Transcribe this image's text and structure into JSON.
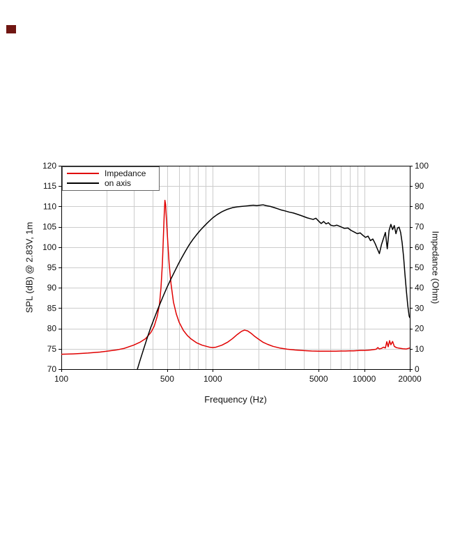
{
  "page": {
    "background": "#ffffff"
  },
  "logo": {
    "color": "#701612"
  },
  "chart_data": {
    "type": "line",
    "title": "",
    "xlabel": "Frequency (Hz)",
    "x_scale": "log",
    "x_range": [
      100,
      20000
    ],
    "x_ticks": [
      {
        "value": 100,
        "label": "100"
      },
      {
        "value": 500,
        "label": "500"
      },
      {
        "value": 1000,
        "label": "1000"
      },
      {
        "value": 5000,
        "label": "5000"
      },
      {
        "value": 10000,
        "label": "10000"
      },
      {
        "value": 20000,
        "label": "20000"
      }
    ],
    "left_axis": {
      "label": "SPL (dB) @ 2.83V, 1m",
      "min": 70,
      "max": 120,
      "step": 5
    },
    "right_axis": {
      "label": "Impedance (Ohm)",
      "min": 0,
      "max": 100,
      "step": 10
    },
    "grid": true,
    "grid_color": "#cccccc",
    "frame_color": "#000000",
    "legend": [
      {
        "label": "Impedance",
        "color": "#e00000"
      },
      {
        "label": "on axis",
        "color": "#000000"
      }
    ],
    "series": [
      {
        "name": "Impedance",
        "axis": "right",
        "unit": "Ohm",
        "color": "#e00000",
        "points": [
          [
            100,
            7.3
          ],
          [
            120,
            7.5
          ],
          [
            150,
            7.9
          ],
          [
            180,
            8.4
          ],
          [
            200,
            8.8
          ],
          [
            230,
            9.4
          ],
          [
            260,
            10.2
          ],
          [
            300,
            11.8
          ],
          [
            330,
            13.2
          ],
          [
            360,
            15
          ],
          [
            390,
            18
          ],
          [
            410,
            21
          ],
          [
            430,
            26
          ],
          [
            445,
            32
          ],
          [
            455,
            40
          ],
          [
            465,
            52
          ],
          [
            472,
            65
          ],
          [
            478,
            76
          ],
          [
            483,
            83
          ],
          [
            488,
            81
          ],
          [
            495,
            73
          ],
          [
            505,
            62
          ],
          [
            515,
            52
          ],
          [
            530,
            42
          ],
          [
            550,
            33
          ],
          [
            575,
            27
          ],
          [
            600,
            23
          ],
          [
            640,
            19
          ],
          [
            680,
            16.5
          ],
          [
            720,
            14.8
          ],
          [
            780,
            13
          ],
          [
            850,
            11.8
          ],
          [
            950,
            10.8
          ],
          [
            1000,
            10.6
          ],
          [
            1050,
            10.8
          ],
          [
            1150,
            11.8
          ],
          [
            1250,
            13.2
          ],
          [
            1350,
            15
          ],
          [
            1450,
            17
          ],
          [
            1550,
            18.6
          ],
          [
            1620,
            19.2
          ],
          [
            1700,
            18.8
          ],
          [
            1800,
            17.5
          ],
          [
            1900,
            16
          ],
          [
            2000,
            14.8
          ],
          [
            2150,
            13.2
          ],
          [
            2300,
            12.2
          ],
          [
            2500,
            11.2
          ],
          [
            2800,
            10.3
          ],
          [
            3100,
            9.8
          ],
          [
            3500,
            9.4
          ],
          [
            4000,
            9.1
          ],
          [
            4500,
            8.9
          ],
          [
            5000,
            8.8
          ],
          [
            5500,
            8.8
          ],
          [
            6000,
            8.8
          ],
          [
            6500,
            8.8
          ],
          [
            7000,
            8.9
          ],
          [
            7500,
            8.9
          ],
          [
            8000,
            9
          ],
          [
            8500,
            9
          ],
          [
            9000,
            9.1
          ],
          [
            9500,
            9.2
          ],
          [
            10000,
            9.2
          ],
          [
            10500,
            9.3
          ],
          [
            11000,
            9.4
          ],
          [
            11500,
            9.6
          ],
          [
            12000,
            9.8
          ],
          [
            12300,
            10.6
          ],
          [
            12600,
            9.9
          ],
          [
            13000,
            10.2
          ],
          [
            13400,
            10.8
          ],
          [
            13800,
            10.4
          ],
          [
            14100,
            13.5
          ],
          [
            14400,
            11
          ],
          [
            14700,
            14
          ],
          [
            15000,
            12
          ],
          [
            15400,
            13.6
          ],
          [
            15800,
            11.2
          ],
          [
            16300,
            10.6
          ],
          [
            17000,
            10.3
          ],
          [
            18000,
            10
          ],
          [
            19000,
            9.9
          ],
          [
            20000,
            10.4
          ]
        ]
      },
      {
        "name": "on axis",
        "axis": "left",
        "unit": "dB",
        "color": "#000000",
        "points": [
          [
            300,
            66
          ],
          [
            315,
            69.5
          ],
          [
            330,
            72
          ],
          [
            350,
            75
          ],
          [
            370,
            77.8
          ],
          [
            390,
            80.3
          ],
          [
            410,
            82.4
          ],
          [
            430,
            84.4
          ],
          [
            450,
            86.2
          ],
          [
            475,
            88.3
          ],
          [
            500,
            90.2
          ],
          [
            530,
            92.2
          ],
          [
            560,
            94
          ],
          [
            590,
            95.7
          ],
          [
            620,
            97.2
          ],
          [
            660,
            99
          ],
          [
            700,
            100.6
          ],
          [
            740,
            101.9
          ],
          [
            780,
            103
          ],
          [
            830,
            104.2
          ],
          [
            880,
            105.2
          ],
          [
            930,
            106.1
          ],
          [
            1000,
            107.2
          ],
          [
            1070,
            108
          ],
          [
            1150,
            108.7
          ],
          [
            1250,
            109.3
          ],
          [
            1350,
            109.7
          ],
          [
            1450,
            109.9
          ],
          [
            1550,
            110
          ],
          [
            1650,
            110.1
          ],
          [
            1750,
            110.2
          ],
          [
            1850,
            110.3
          ],
          [
            1950,
            110.2
          ],
          [
            2050,
            110.3
          ],
          [
            2150,
            110.4
          ],
          [
            2250,
            110.2
          ],
          [
            2400,
            110
          ],
          [
            2550,
            109.7
          ],
          [
            2700,
            109.4
          ],
          [
            2850,
            109.1
          ],
          [
            3000,
            108.9
          ],
          [
            3200,
            108.6
          ],
          [
            3400,
            108.4
          ],
          [
            3600,
            108.1
          ],
          [
            3800,
            107.8
          ],
          [
            4000,
            107.5
          ],
          [
            4200,
            107.2
          ],
          [
            4400,
            107
          ],
          [
            4600,
            106.8
          ],
          [
            4800,
            107.1
          ],
          [
            5000,
            106.4
          ],
          [
            5200,
            105.8
          ],
          [
            5400,
            106.3
          ],
          [
            5600,
            105.7
          ],
          [
            5800,
            106
          ],
          [
            6000,
            105.4
          ],
          [
            6300,
            105.2
          ],
          [
            6600,
            105.4
          ],
          [
            7000,
            105
          ],
          [
            7400,
            104.6
          ],
          [
            7800,
            104.7
          ],
          [
            8200,
            104.1
          ],
          [
            8600,
            103.7
          ],
          [
            9000,
            103.3
          ],
          [
            9400,
            103.5
          ],
          [
            9800,
            102.9
          ],
          [
            10200,
            102.4
          ],
          [
            10600,
            102.7
          ],
          [
            11000,
            101.6
          ],
          [
            11400,
            102
          ],
          [
            11800,
            100.9
          ],
          [
            12200,
            99.6
          ],
          [
            12600,
            98.4
          ],
          [
            13000,
            100.6
          ],
          [
            13400,
            102.1
          ],
          [
            13800,
            103.6
          ],
          [
            14200,
            99.6
          ],
          [
            14600,
            104.1
          ],
          [
            15000,
            105.6
          ],
          [
            15400,
            104.3
          ],
          [
            15800,
            105.3
          ],
          [
            16200,
            103.3
          ],
          [
            16600,
            104.7
          ],
          [
            17000,
            104.9
          ],
          [
            17400,
            103.6
          ],
          [
            17800,
            101.1
          ],
          [
            18200,
            97.6
          ],
          [
            18600,
            93.1
          ],
          [
            19000,
            89.1
          ],
          [
            19400,
            85.6
          ],
          [
            19800,
            83.1
          ],
          [
            20000,
            82.6
          ]
        ]
      }
    ]
  }
}
